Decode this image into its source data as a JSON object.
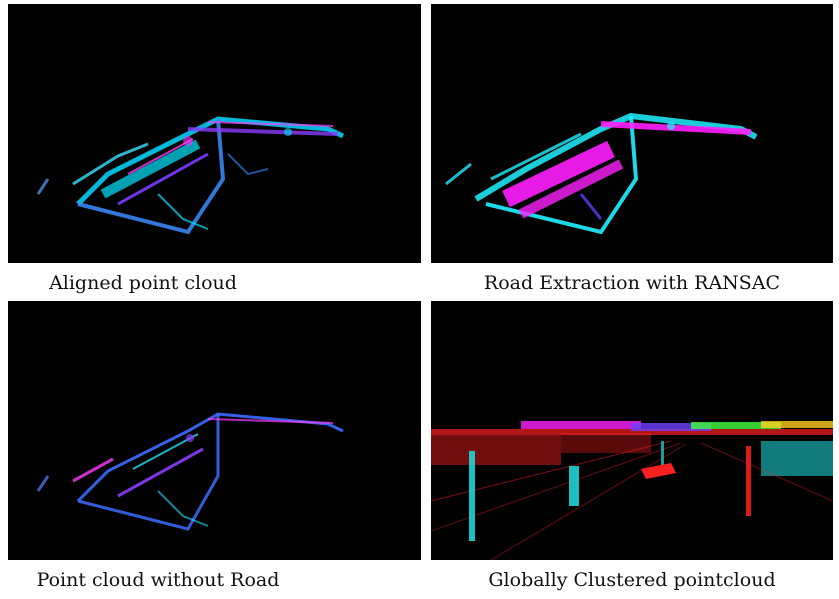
{
  "figure": {
    "panels": [
      {
        "caption": "Aligned point cloud",
        "icon": "aligned-point-cloud-image",
        "palette": [
          "#00e5ff",
          "#7a3cff",
          "#ff3cff",
          "#3c8cff"
        ]
      },
      {
        "caption": "Road Extraction with RANSAC",
        "icon": "road-extraction-image",
        "palette": [
          "#ff20ff",
          "#20f0ff",
          "#5a40ff"
        ]
      },
      {
        "caption": "Point cloud without Road",
        "icon": "point-cloud-without-road-image",
        "palette": [
          "#3c6cff",
          "#8a3cff",
          "#20e0ff",
          "#ff3cff"
        ]
      },
      {
        "caption": "Globally Clustered pointcloud",
        "icon": "clustered-pointcloud-image",
        "palette": [
          "#ff2020",
          "#20e0e0",
          "#ff20ff",
          "#ffd020",
          "#40ff40",
          "#7040ff"
        ]
      }
    ]
  }
}
